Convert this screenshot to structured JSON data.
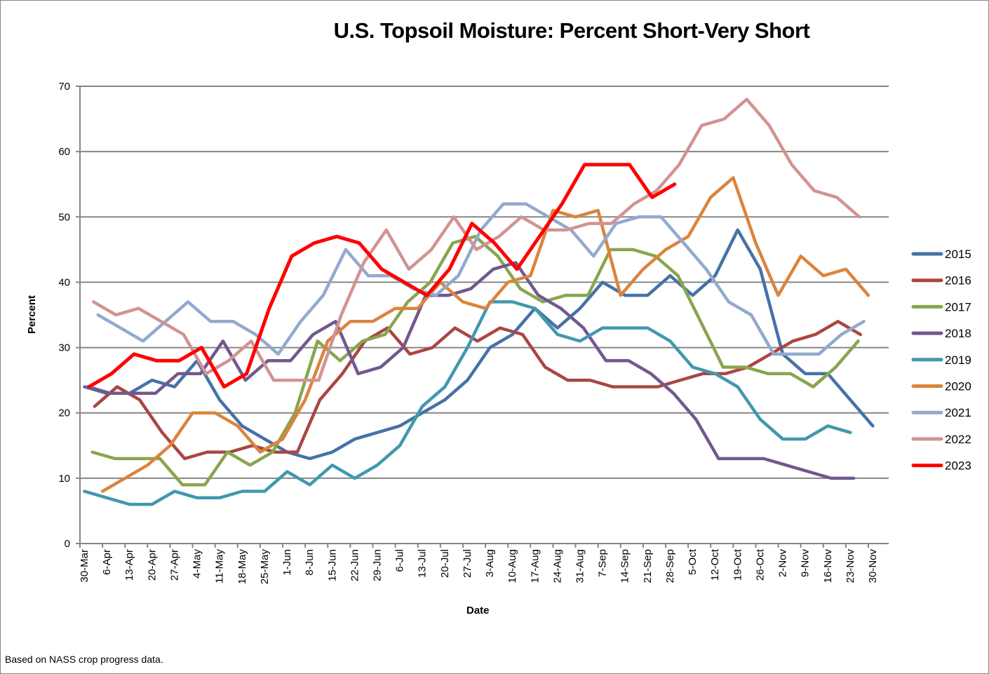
{
  "chart_data": {
    "type": "line",
    "title": "U.S. Topsoil Moisture: Percent Short-Very Short",
    "xlabel": "Date",
    "ylabel": "Percent",
    "ylim": [
      0,
      70
    ],
    "yticks": [
      0,
      10,
      20,
      30,
      40,
      50,
      60,
      70
    ],
    "grid": true,
    "legend_position": "right",
    "categories": [
      "30-Mar",
      "6-Apr",
      "13-Apr",
      "20-Apr",
      "27-Apr",
      "4-May",
      "11-May",
      "18-May",
      "25-May",
      "1-Jun",
      "8-Jun",
      "15-Jun",
      "22-Jun",
      "29-Jun",
      "6-Jul",
      "13-Jul",
      "20-Jul",
      "27-Jul",
      "3-Aug",
      "10-Aug",
      "17-Aug",
      "24-Aug",
      "31-Aug",
      "7-Sep",
      "14-Sep",
      "21-Sep",
      "28-Sep",
      "5-Oct",
      "12-Oct",
      "19-Oct",
      "26-Oct",
      "2-Nov",
      "9-Nov",
      "16-Nov",
      "23-Nov",
      "30-Nov"
    ],
    "series": [
      {
        "name": "2015",
        "color": "#4572A7",
        "start_week": 0.2,
        "values": [
          24,
          23,
          23,
          25,
          24,
          28,
          22,
          18,
          16,
          14,
          13,
          14,
          16,
          17,
          18,
          20,
          22,
          25,
          30,
          32,
          36,
          33,
          36,
          40,
          38,
          38,
          41,
          38,
          41,
          48,
          42,
          29,
          26,
          26,
          22,
          18
        ]
      },
      {
        "name": "2016",
        "color": "#AA4643",
        "start_week": 0.65,
        "values": [
          21,
          24,
          22,
          17,
          13,
          14,
          14,
          15,
          14,
          14,
          22,
          26,
          31,
          33,
          29,
          30,
          33,
          31,
          33,
          32,
          27,
          25,
          25,
          24,
          24,
          24,
          25,
          26,
          26,
          27,
          29,
          31,
          32,
          34,
          32
        ]
      },
      {
        "name": "2017",
        "color": "#89A54E",
        "start_week": 0.55,
        "values": [
          14,
          13,
          13,
          13,
          9,
          9,
          14,
          12,
          14,
          20,
          31,
          28,
          31,
          32,
          37,
          40,
          46,
          47,
          44,
          39,
          37,
          38,
          38,
          45,
          45,
          44,
          41,
          34,
          27,
          27,
          26,
          26,
          24,
          27,
          31
        ]
      },
      {
        "name": "2018",
        "color": "#71588F",
        "start_week": 0.35,
        "values": [
          24,
          23,
          23,
          23,
          26,
          26,
          31,
          25,
          28,
          28,
          32,
          34,
          26,
          27,
          30,
          38,
          38,
          39,
          42,
          43,
          38,
          36,
          33,
          28,
          28,
          26,
          23,
          19,
          13,
          13,
          13,
          12,
          11,
          10,
          10
        ]
      },
      {
        "name": "2019",
        "color": "#4198AF",
        "start_week": 0.2,
        "values": [
          8,
          7,
          6,
          6,
          8,
          7,
          7,
          8,
          8,
          11,
          9,
          12,
          10,
          12,
          15,
          21,
          24,
          30,
          37,
          37,
          36,
          32,
          31,
          33,
          33,
          33,
          31,
          27,
          26,
          24,
          19,
          16,
          16,
          18,
          17
        ]
      },
      {
        "name": "2020",
        "color": "#DB843D",
        "start_week": 1.0,
        "values": [
          8,
          10,
          12,
          15,
          20,
          20,
          18,
          14,
          16,
          22,
          31,
          34,
          34,
          36,
          36,
          40,
          37,
          36,
          40,
          41,
          51,
          50,
          51,
          38,
          42,
          45,
          47,
          53,
          56,
          46,
          38,
          44,
          41,
          42,
          38
        ]
      },
      {
        "name": "2021",
        "color": "#93A9CF",
        "start_week": 0.8,
        "values": [
          35,
          33,
          31,
          34,
          37,
          34,
          34,
          32,
          29,
          34,
          38,
          45,
          41,
          41,
          39,
          38,
          41,
          48,
          52,
          52,
          50,
          48,
          44,
          49,
          50,
          50,
          46,
          42,
          37,
          35,
          29,
          29,
          29,
          32,
          34
        ]
      },
      {
        "name": "2022",
        "color": "#D19392",
        "start_week": 0.6,
        "values": [
          37,
          35,
          36,
          34,
          32,
          26,
          28,
          31,
          25,
          25,
          25,
          35,
          43,
          48,
          42,
          45,
          50,
          45,
          47,
          50,
          48,
          48,
          49,
          49,
          52,
          54,
          58,
          64,
          65,
          68,
          64,
          58,
          54,
          53,
          50
        ]
      },
      {
        "name": "2023",
        "color": "#FF0000",
        "start_week": 0.4,
        "values": [
          24,
          26,
          29,
          28,
          28,
          30,
          24,
          26,
          36,
          44,
          46,
          47,
          46,
          42,
          40,
          38,
          42,
          49,
          46,
          42,
          47,
          52,
          58,
          58,
          58,
          53,
          55
        ]
      }
    ]
  },
  "footnote": "Based on NASS crop progress data."
}
